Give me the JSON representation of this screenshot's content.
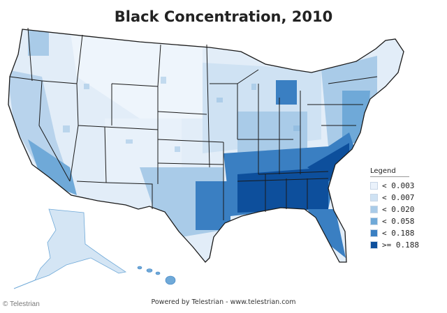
{
  "title": "Black Concentration, 2010",
  "legend": {
    "title": "Legend",
    "items": [
      {
        "label": "< 0.003",
        "color": "#eaf2fb"
      },
      {
        "label": "< 0.007",
        "color": "#cfe2f3"
      },
      {
        "label": "< 0.020",
        "color": "#a9cbe8"
      },
      {
        "label": "< 0.058",
        "color": "#6fa9d8"
      },
      {
        "label": "< 0.188",
        "color": "#3a7fc2"
      },
      {
        "label": ">= 0.188",
        "color": "#0d4f9c"
      }
    ]
  },
  "footer": "Powered by Telestrian - www.telestrian.com",
  "credit": "© Telestrian",
  "map": {
    "region": "United States (counties)",
    "state_border_color": "#1a1a1a",
    "highest_concentration": "Southeastern states"
  }
}
